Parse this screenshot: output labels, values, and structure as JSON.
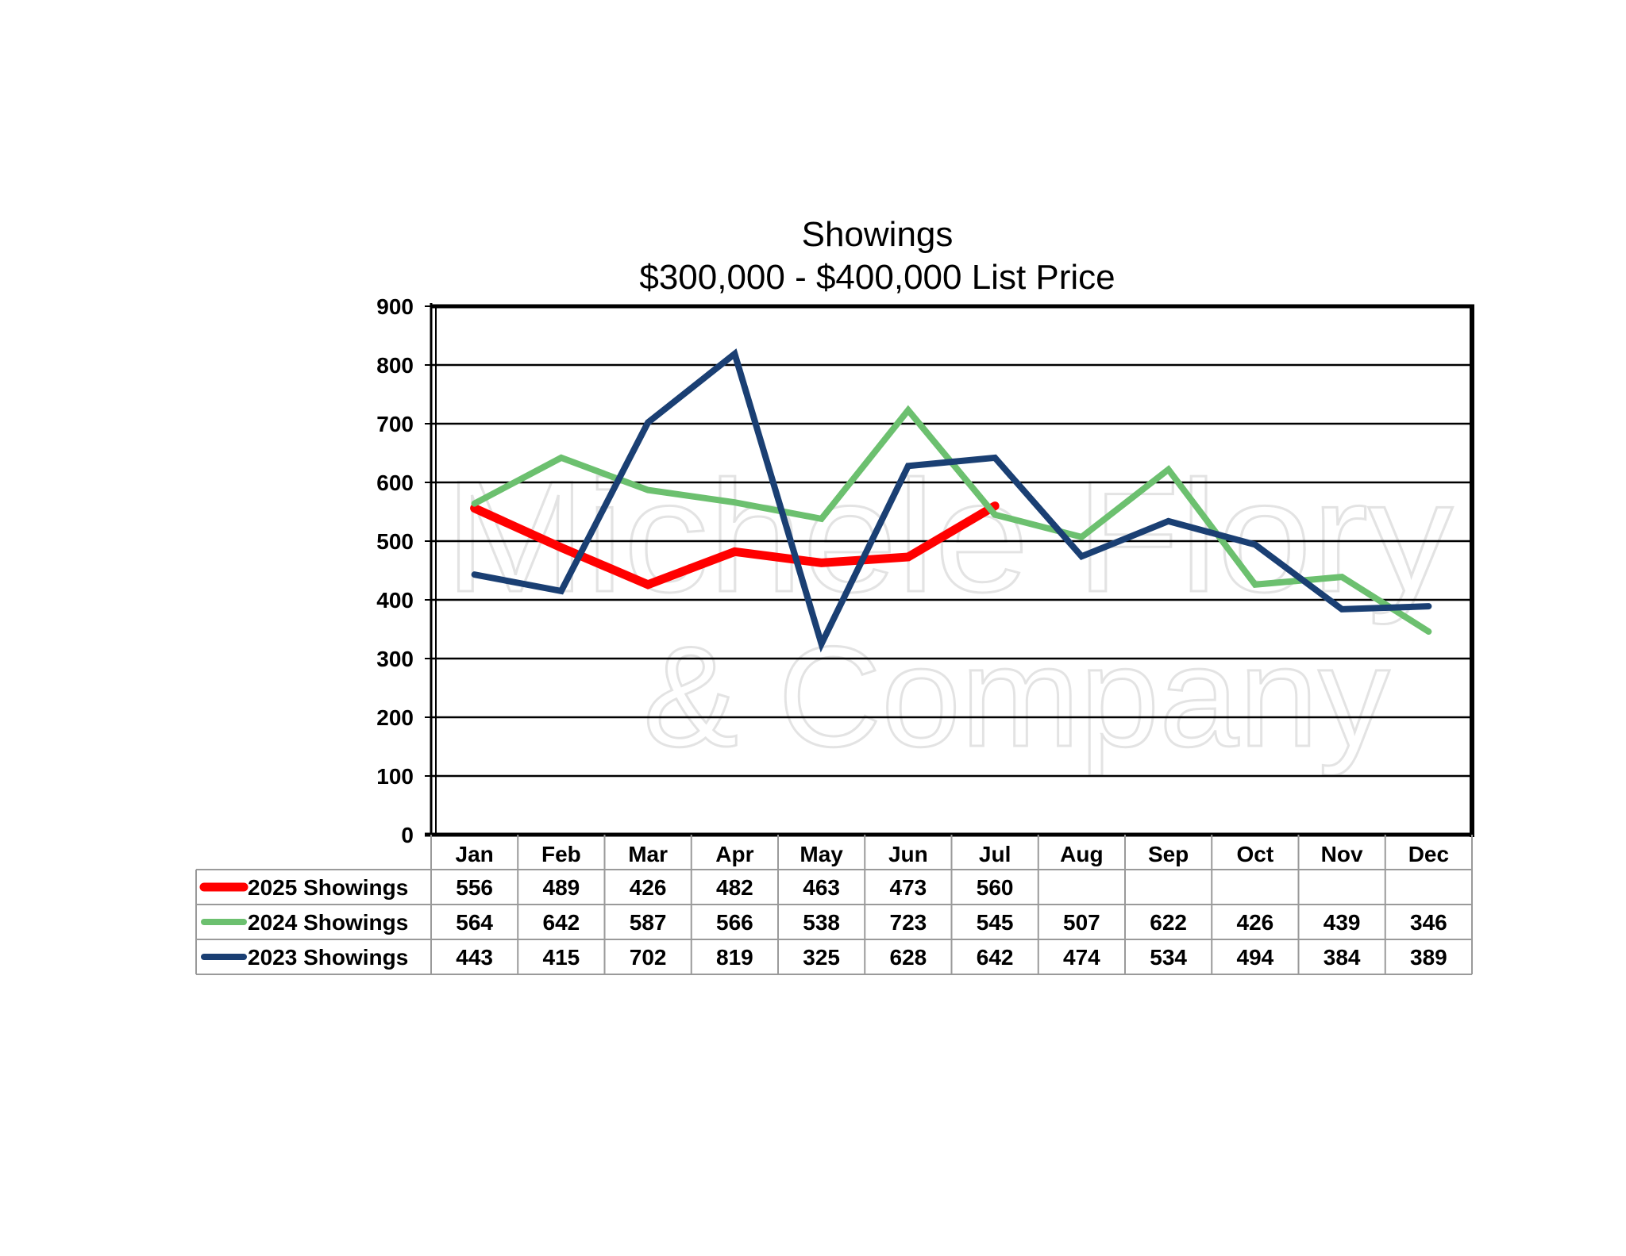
{
  "chart_data": {
    "type": "line",
    "title": "Showings",
    "subtitle": "$300,000 - $400,000 List Price",
    "categories": [
      "Jan",
      "Feb",
      "Mar",
      "Apr",
      "May",
      "Jun",
      "Jul",
      "Aug",
      "Sep",
      "Oct",
      "Nov",
      "Dec"
    ],
    "ylim": [
      0,
      900
    ],
    "yticks": [
      "0",
      "100",
      "200",
      "300",
      "400",
      "500",
      "600",
      "700",
      "800",
      "900"
    ],
    "grid": true,
    "legend": "data-table-below",
    "series": [
      {
        "name": "2025 Showings",
        "color": "#ff0000",
        "values": [
          556,
          489,
          426,
          482,
          463,
          473,
          560,
          null,
          null,
          null,
          null,
          null
        ]
      },
      {
        "name": "2024 Showings",
        "color": "#6cc06f",
        "values": [
          564,
          642,
          587,
          566,
          538,
          723,
          545,
          507,
          622,
          426,
          439,
          346
        ]
      },
      {
        "name": "2023 Showings",
        "color": "#1a3f73",
        "values": [
          443,
          415,
          702,
          819,
          325,
          628,
          642,
          474,
          534,
          494,
          384,
          389
        ]
      }
    ]
  },
  "watermark": {
    "line1": "Michele Flory",
    "line2": "& Company"
  }
}
